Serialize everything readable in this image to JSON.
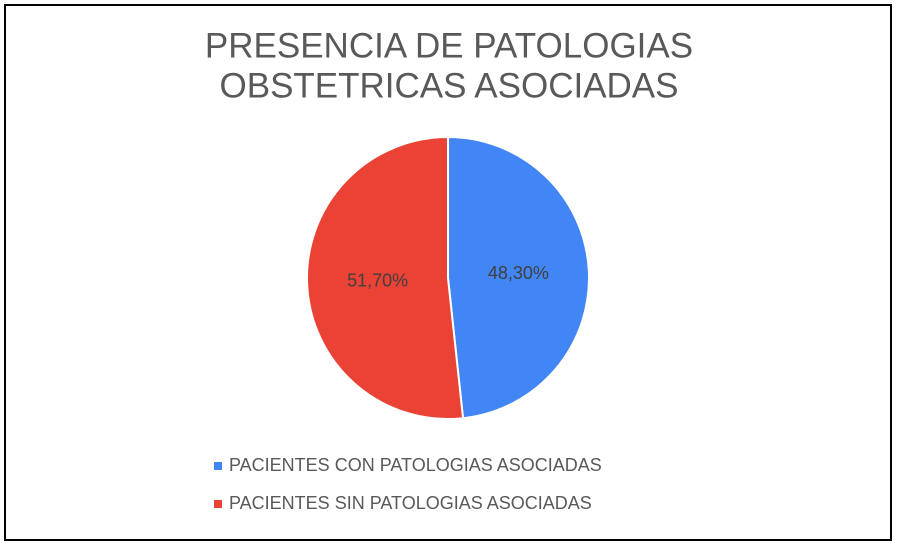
{
  "chart_data": {
    "type": "pie",
    "title": [
      "PRESENCIA DE PATOLOGIAS",
      "OBSTETRICAS ASOCIADAS"
    ],
    "categories": [
      "PACIENTES CON PATOLOGIAS ASOCIADAS",
      "PACIENTES SIN PATOLOGIAS ASOCIADAS"
    ],
    "values": [
      48.3,
      51.7
    ],
    "value_labels": [
      "48,30%",
      "51,70%"
    ],
    "colors": [
      "#4285f4",
      "#ea4335"
    ],
    "legend": "bottom"
  }
}
